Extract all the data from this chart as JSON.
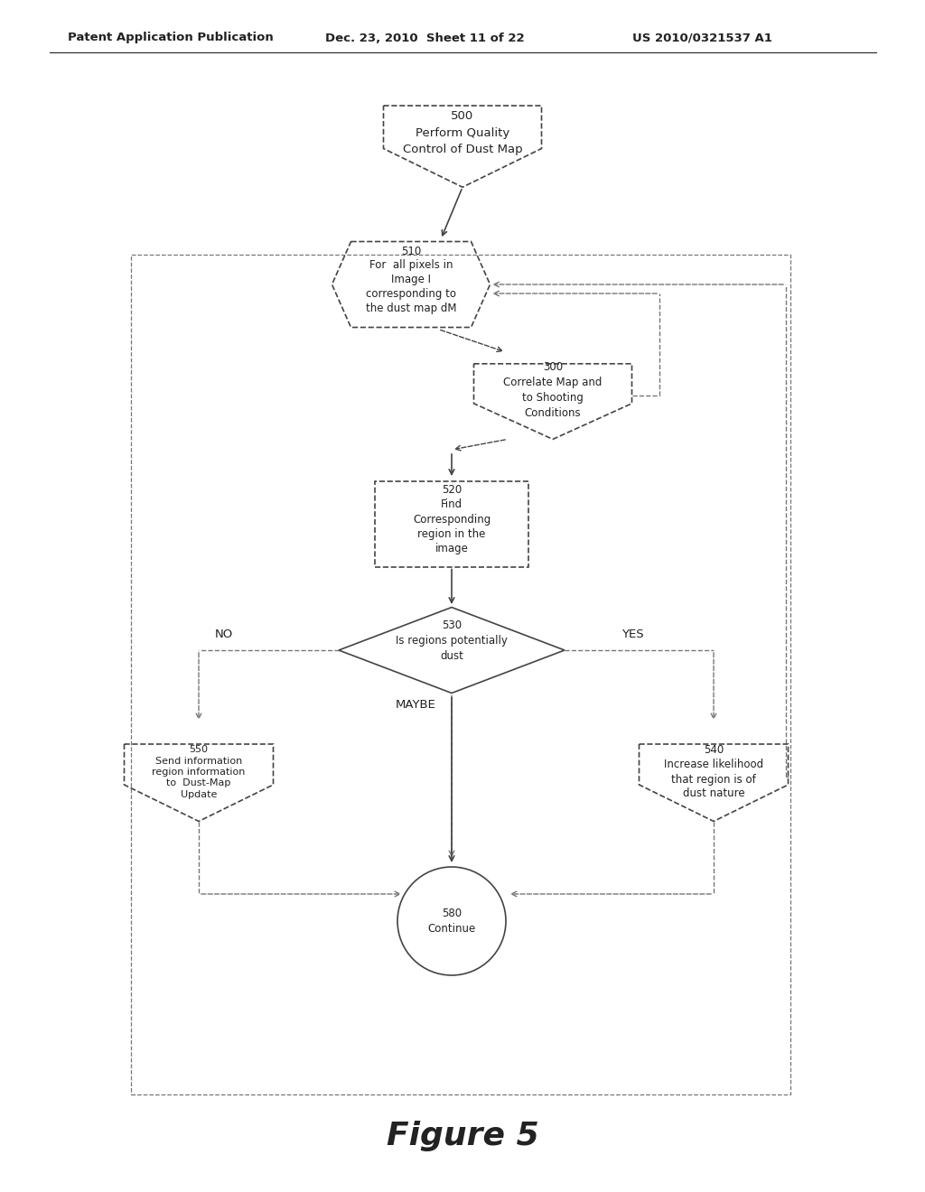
{
  "title": "Figure 5",
  "header_left": "Patent Application Publication",
  "header_mid": "Dec. 23, 2010  Sheet 11 of 22",
  "header_right": "US 2010/0321537 A1",
  "background_color": "#ffffff",
  "text_color": "#222222",
  "shape_edge_color": "#444444",
  "dashed_color": "#777777",
  "fig_width": 10.24,
  "fig_height": 13.2,
  "dpi": 100
}
